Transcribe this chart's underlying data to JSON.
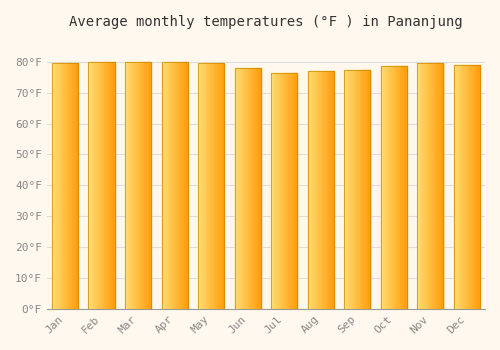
{
  "title": "Average monthly temperatures (°F ) in Pananjung",
  "months": [
    "Jan",
    "Feb",
    "Mar",
    "Apr",
    "May",
    "Jun",
    "Jul",
    "Aug",
    "Sep",
    "Oct",
    "Nov",
    "Dec"
  ],
  "values": [
    79.5,
    80.0,
    80.0,
    80.0,
    79.5,
    78.0,
    76.5,
    77.0,
    77.5,
    78.5,
    79.5,
    79.0
  ],
  "bar_color_main": "#FFA500",
  "bar_color_light": "#FFD870",
  "bar_edge_color": "#CC8800",
  "background_color": "#FFF8EE",
  "grid_color": "#DDDDDD",
  "ylim": [
    0,
    88
  ],
  "yticks": [
    0,
    10,
    20,
    30,
    40,
    50,
    60,
    70,
    80
  ],
  "ytick_labels": [
    "0°F",
    "10°F",
    "20°F",
    "30°F",
    "40°F",
    "50°F",
    "60°F",
    "70°F",
    "80°F"
  ],
  "title_fontsize": 10,
  "tick_fontsize": 8,
  "tick_color": "#888888",
  "axis_color": "#999999"
}
